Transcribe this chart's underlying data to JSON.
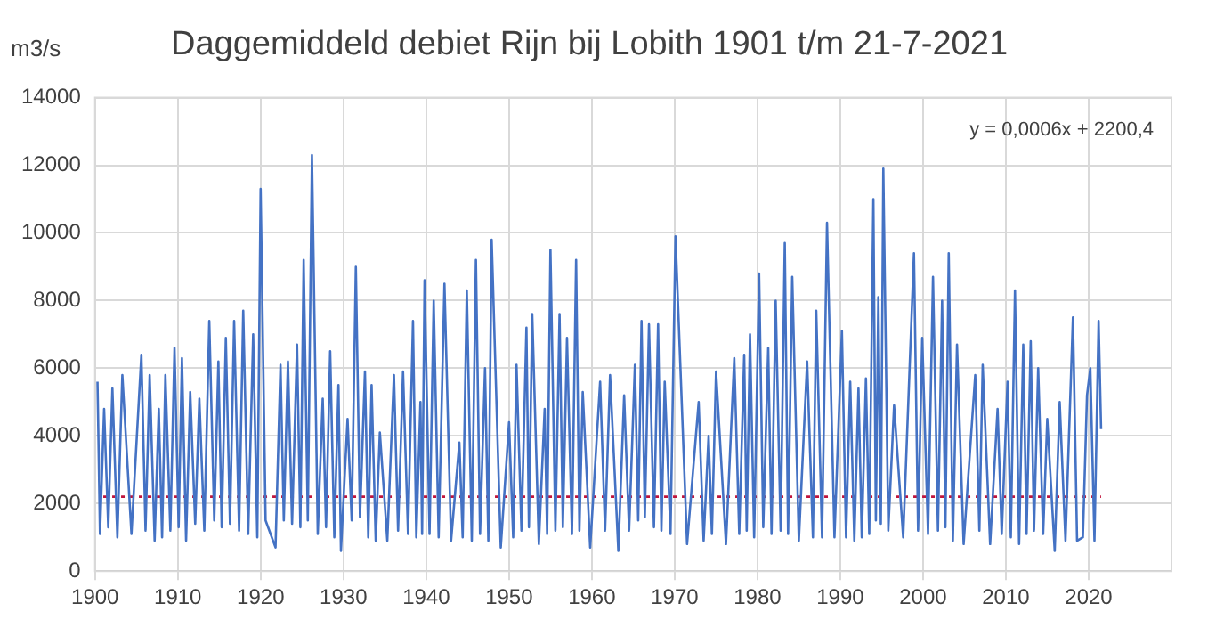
{
  "chart_data": {
    "type": "line",
    "title": "Daggemiddeld debiet Rijn bij Lobith 1901 t/m 21-7-2021",
    "ylabel": "m3/s",
    "annotations": [
      "y = 0,0006x + 2200,4"
    ],
    "xlim": [
      1900,
      2030
    ],
    "xticks": [
      1900,
      1910,
      1920,
      1930,
      1940,
      1950,
      1960,
      1970,
      1980,
      1990,
      2000,
      2010,
      2020
    ],
    "ylim": [
      0,
      14000
    ],
    "yticks": [
      0,
      2000,
      4000,
      6000,
      8000,
      10000,
      12000,
      14000
    ],
    "grid": true,
    "legend": false,
    "marker": "none",
    "series": [
      {
        "color": "#4472c4",
        "line_style": "solid",
        "x": [
          1900.3,
          1900.6,
          1901.1,
          1901.6,
          1902.1,
          1902.7,
          1903.3,
          1904.4,
          1905.6,
          1906.1,
          1906.6,
          1907.2,
          1907.7,
          1908.1,
          1908.5,
          1909.1,
          1909.6,
          1910.1,
          1910.5,
          1911.0,
          1911.5,
          1912.1,
          1912.6,
          1913.2,
          1913.8,
          1914.4,
          1914.9,
          1915.3,
          1915.8,
          1916.3,
          1916.8,
          1917.4,
          1917.9,
          1918.5,
          1919.1,
          1919.6,
          1920.0,
          1920.6,
          1921.8,
          1922.4,
          1922.8,
          1923.3,
          1923.8,
          1924.4,
          1924.8,
          1925.2,
          1925.7,
          1926.2,
          1926.9,
          1927.5,
          1927.9,
          1928.4,
          1928.9,
          1929.4,
          1929.7,
          1930.5,
          1931.0,
          1931.5,
          1932.0,
          1932.6,
          1933.0,
          1933.4,
          1933.9,
          1934.4,
          1935.3,
          1936.1,
          1936.6,
          1937.2,
          1937.8,
          1938.4,
          1938.8,
          1939.3,
          1939.5,
          1939.8,
          1940.4,
          1940.9,
          1941.5,
          1942.2,
          1943.0,
          1944.0,
          1944.4,
          1944.9,
          1945.5,
          1946.0,
          1946.5,
          1947.1,
          1947.5,
          1947.9,
          1949.0,
          1950.0,
          1950.5,
          1950.9,
          1951.5,
          1952.1,
          1952.4,
          1952.8,
          1953.6,
          1954.3,
          1954.6,
          1955.0,
          1955.6,
          1956.1,
          1956.5,
          1957.0,
          1957.6,
          1958.1,
          1958.5,
          1958.9,
          1959.8,
          1961.0,
          1961.6,
          1962.2,
          1963.2,
          1963.9,
          1964.5,
          1965.2,
          1965.6,
          1966.0,
          1966.4,
          1966.9,
          1967.5,
          1968.0,
          1968.4,
          1968.8,
          1969.5,
          1970.1,
          1971.5,
          1972.9,
          1973.5,
          1974.1,
          1974.5,
          1975.0,
          1976.2,
          1977.2,
          1977.8,
          1978.4,
          1978.7,
          1979.1,
          1979.6,
          1980.2,
          1980.7,
          1981.3,
          1981.7,
          1982.2,
          1982.8,
          1983.3,
          1983.7,
          1984.2,
          1985.0,
          1986.0,
          1986.7,
          1987.1,
          1987.8,
          1988.4,
          1989.3,
          1990.2,
          1990.7,
          1991.2,
          1991.7,
          1992.2,
          1992.6,
          1993.1,
          1993.5,
          1994.0,
          1994.3,
          1994.6,
          1994.9,
          1995.2,
          1995.8,
          1996.5,
          1997.6,
          1998.9,
          1999.4,
          1999.9,
          2000.6,
          2001.2,
          2001.8,
          2002.3,
          2002.7,
          2003.1,
          2003.6,
          2004.1,
          2004.9,
          2006.3,
          2006.8,
          2007.2,
          2008.1,
          2009.0,
          2009.5,
          2010.2,
          2010.6,
          2011.1,
          2011.6,
          2012.1,
          2012.5,
          2013.0,
          2013.4,
          2013.9,
          2014.5,
          2015.0,
          2015.9,
          2016.5,
          2017.2,
          2018.1,
          2018.6,
          2019.3,
          2019.8,
          2020.2,
          2020.7,
          2021.2,
          2021.5
        ],
        "values": [
          5600,
          1100,
          4800,
          1300,
          5400,
          1000,
          5800,
          1100,
          6400,
          1200,
          5800,
          900,
          4800,
          1000,
          5800,
          1200,
          6600,
          1300,
          6300,
          900,
          5300,
          1400,
          5100,
          1200,
          7400,
          1500,
          6200,
          1300,
          6900,
          1400,
          7400,
          1200,
          7700,
          1100,
          7000,
          1000,
          11300,
          1500,
          700,
          6100,
          1500,
          6200,
          1400,
          6700,
          1300,
          9200,
          1500,
          12300,
          1100,
          5100,
          1300,
          6500,
          1000,
          5500,
          600,
          4500,
          1500,
          9000,
          1600,
          5900,
          1000,
          5500,
          900,
          4100,
          900,
          5800,
          1200,
          5900,
          1100,
          7400,
          1000,
          5000,
          1100,
          8600,
          1100,
          8000,
          1000,
          8500,
          900,
          3800,
          1000,
          8300,
          900,
          9200,
          1100,
          6000,
          900,
          9800,
          700,
          4400,
          1000,
          6100,
          1200,
          7200,
          1300,
          7600,
          800,
          4800,
          1100,
          9500,
          1200,
          7600,
          1300,
          6900,
          1100,
          9200,
          1200,
          5300,
          700,
          5600,
          1200,
          5800,
          600,
          5200,
          1200,
          6100,
          1500,
          7400,
          1600,
          7300,
          1300,
          7300,
          1200,
          5600,
          1100,
          9900,
          800,
          5000,
          900,
          4000,
          1100,
          5900,
          800,
          6300,
          1100,
          6400,
          1200,
          7000,
          1000,
          8800,
          1300,
          6600,
          1100,
          8000,
          1200,
          9700,
          1100,
          8700,
          900,
          6200,
          1000,
          7700,
          1000,
          10300,
          1000,
          7100,
          1000,
          5600,
          900,
          5400,
          1000,
          5700,
          1100,
          11000,
          1500,
          8100,
          1400,
          11900,
          1200,
          4900,
          1000,
          9400,
          1200,
          6900,
          1100,
          8700,
          1200,
          8000,
          1300,
          9400,
          900,
          6700,
          800,
          5800,
          1200,
          6100,
          800,
          4800,
          1100,
          5600,
          1000,
          8300,
          800,
          6700,
          1100,
          6800,
          1200,
          6000,
          1100,
          4500,
          600,
          5000,
          900,
          7500,
          900,
          1000,
          5200,
          6000,
          900,
          7400,
          4200
        ]
      },
      {
        "color": "#c0143c",
        "line_style": "dotted",
        "x": [
          1901.0,
          2021.5
        ],
        "values": [
          2200,
          2200
        ]
      }
    ]
  }
}
